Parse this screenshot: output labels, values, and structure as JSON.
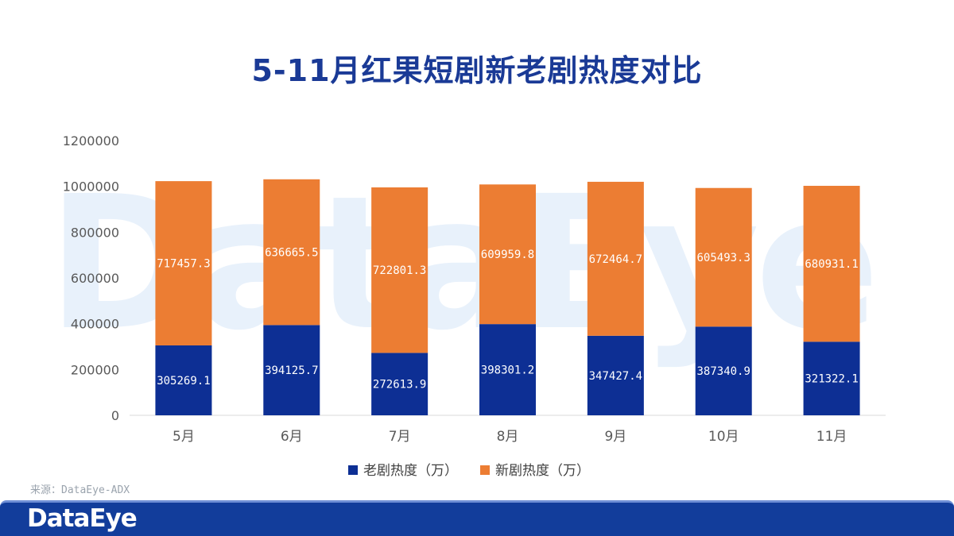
{
  "colors": {
    "old_series": "#0d2f94",
    "new_series": "#ec7d33",
    "title": "#1a3a96",
    "axis_text": "#595959",
    "footer": "#123d9b",
    "watermark": "#e8f1fb"
  },
  "watermark_text": "DataEye",
  "source_text": "来源：DataEye-ADX",
  "footer": {
    "logo_text": "DataEye"
  },
  "chart_data": {
    "type": "bar",
    "stacked": true,
    "title": "5-11月红果短剧新老剧热度对比",
    "xlabel": "",
    "ylabel": "",
    "categories": [
      "5月",
      "6月",
      "7月",
      "8月",
      "9月",
      "10月",
      "11月"
    ],
    "series": [
      {
        "name": "老剧热度（万）",
        "color": "#0d2f94",
        "values": [
          305269.1,
          394125.7,
          272613.9,
          398301.2,
          347427.4,
          387340.9,
          321322.1
        ],
        "labels": [
          "305269.1",
          "394125.7",
          "272613.9",
          "398301.2",
          "347427.4",
          "387340.9",
          "321322.1"
        ]
      },
      {
        "name": "新剧热度（万）",
        "color": "#ec7d33",
        "values": [
          717457.3,
          636665.5,
          722801.3,
          609959.8,
          672464.7,
          605493.3,
          680931.1
        ],
        "labels": [
          "717457.3",
          "636665.5",
          "722801.3",
          "609959.8",
          "672464.7",
          "605493.3",
          "680931.1"
        ]
      }
    ],
    "ylim": [
      0,
      1200000
    ],
    "yticks": [
      "0",
      "200000",
      "400000",
      "600000",
      "800000",
      "1000000",
      "1200000"
    ],
    "ytick_values": [
      0,
      200000,
      400000,
      600000,
      800000,
      1000000,
      1200000
    ],
    "grid": false,
    "legend": "bottom-center"
  }
}
